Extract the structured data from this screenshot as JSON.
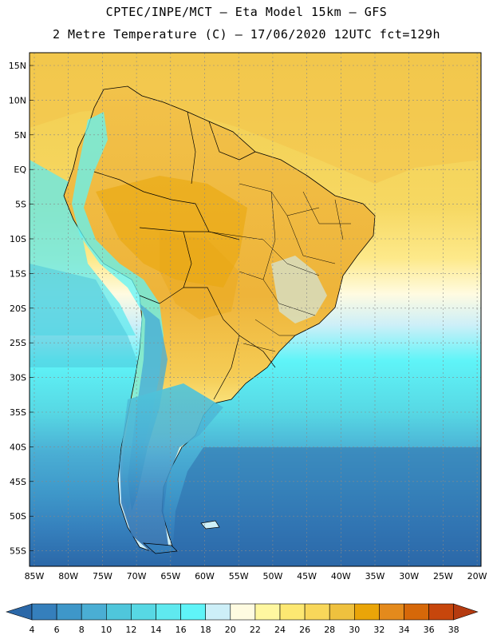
{
  "header": {
    "line1": "CPTEC/INPE/MCT –  Eta Model 15km – GFS",
    "line2": "2 Metre Temperature (C) – 17/06/2020 12UTC fct=129h"
  },
  "axes": {
    "lat_labels": [
      "15N",
      "10N",
      "5N",
      "EQ",
      "5S",
      "10S",
      "15S",
      "20S",
      "25S",
      "30S",
      "35S",
      "40S",
      "45S",
      "50S",
      "55S"
    ],
    "lon_labels": [
      "85W",
      "80W",
      "75W",
      "70W",
      "65W",
      "60W",
      "55W",
      "50W",
      "45W",
      "40W",
      "35W",
      "30W",
      "25W",
      "20W"
    ]
  },
  "colorbar": {
    "labels": [
      "4",
      "6",
      "8",
      "10",
      "12",
      "14",
      "16",
      "18",
      "20",
      "22",
      "24",
      "26",
      "28",
      "30",
      "32",
      "34",
      "36",
      "38"
    ],
    "colors": [
      "#2b68a8",
      "#357fbc",
      "#3e97c9",
      "#4aaed4",
      "#4fc6db",
      "#57d8e4",
      "#5fe9ef",
      "#5ff4f8",
      "#cdeff8",
      "#fffbe1",
      "#fff7a0",
      "#fde872",
      "#f8d75a",
      "#efc13e",
      "#eaa508",
      "#e48a1c",
      "#d66809",
      "#c7460c",
      "#b53b10"
    ]
  }
}
